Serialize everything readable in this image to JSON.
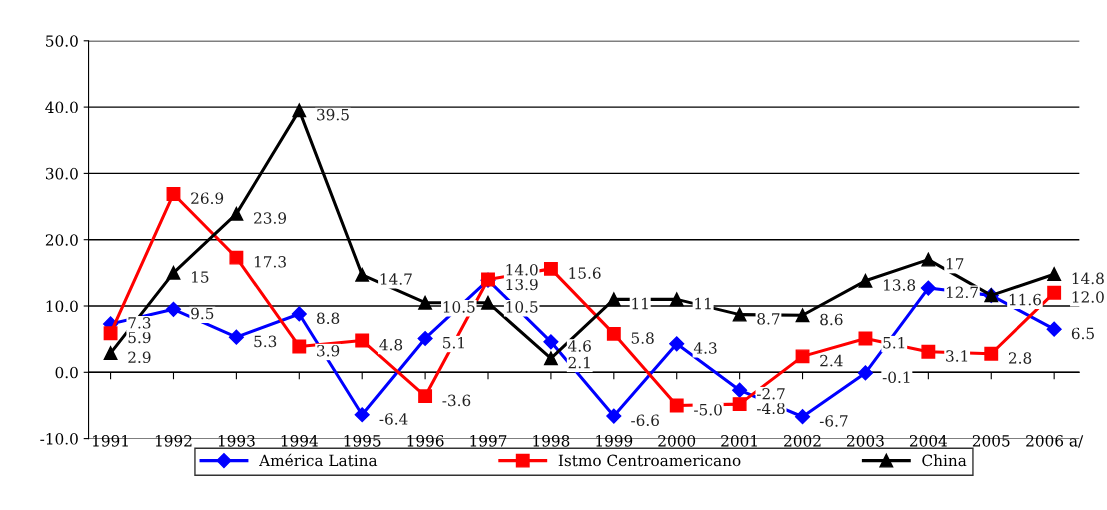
{
  "chart_data": {
    "type": "line",
    "categories": [
      "1991",
      "1992",
      "1993",
      "1994",
      "1995",
      "1996",
      "1997",
      "1998",
      "1999",
      "2000",
      "2001",
      "2002",
      "2003",
      "2004",
      "2005",
      "2006 a/"
    ],
    "series": [
      {
        "name": "América Latina",
        "color": "#0000ff",
        "marker": "diamond",
        "values": [
          7.3,
          9.5,
          5.3,
          8.8,
          -6.4,
          5.1,
          13.9,
          4.6,
          -6.6,
          4.3,
          -2.7,
          -6.7,
          -0.1,
          12.7,
          11.6,
          6.5
        ],
        "value_labels": [
          "7.3",
          "9.5",
          "5.3",
          "8.8",
          "-6.4",
          "5.1",
          "13.9",
          "4.6",
          "-6.6",
          "4.3",
          "-2.7",
          "-6.7",
          "-0.1",
          "12.7",
          null,
          "6.5"
        ]
      },
      {
        "name": "Istmo Centroamericano",
        "color": "#ff0000",
        "marker": "square",
        "values": [
          5.9,
          26.9,
          17.3,
          3.9,
          4.8,
          -3.6,
          14.0,
          15.6,
          5.8,
          -5.0,
          -4.8,
          2.4,
          5.1,
          3.1,
          2.8,
          12.0
        ],
        "value_labels": [
          "5.9",
          "26.9",
          "17.3",
          "3.9",
          "4.8",
          "-3.6",
          "14.0",
          "15.6",
          "5.8",
          "-5.0",
          "-4.8",
          "2.4",
          "5.1",
          "3.1",
          "2.8",
          "12.0"
        ]
      },
      {
        "name": "China",
        "color": "#000000",
        "marker": "triangle",
        "values": [
          2.9,
          15,
          23.9,
          39.5,
          14.7,
          10.5,
          10.5,
          2.1,
          11,
          11,
          8.7,
          8.6,
          13.8,
          17,
          11.6,
          14.8
        ],
        "value_labels": [
          "2.9",
          "15",
          "23.9",
          "39.5",
          "14.7",
          "10.5",
          "10.5",
          "2.1",
          "11",
          "11",
          "8.7",
          "8.6",
          "13.8",
          "17",
          "11.6",
          "14.8"
        ]
      }
    ],
    "ylim": [
      -10,
      50
    ],
    "yticks": [
      {
        "value": -10,
        "label": "-10.0"
      },
      {
        "value": 0,
        "label": "0.0"
      },
      {
        "value": 10,
        "label": "10.0"
      },
      {
        "value": 20,
        "label": "20.0"
      },
      {
        "value": 30,
        "label": "30.0"
      },
      {
        "value": 40,
        "label": "40.0"
      },
      {
        "value": 50,
        "label": "50.0"
      }
    ],
    "grid": "y",
    "legend": "bottom"
  }
}
